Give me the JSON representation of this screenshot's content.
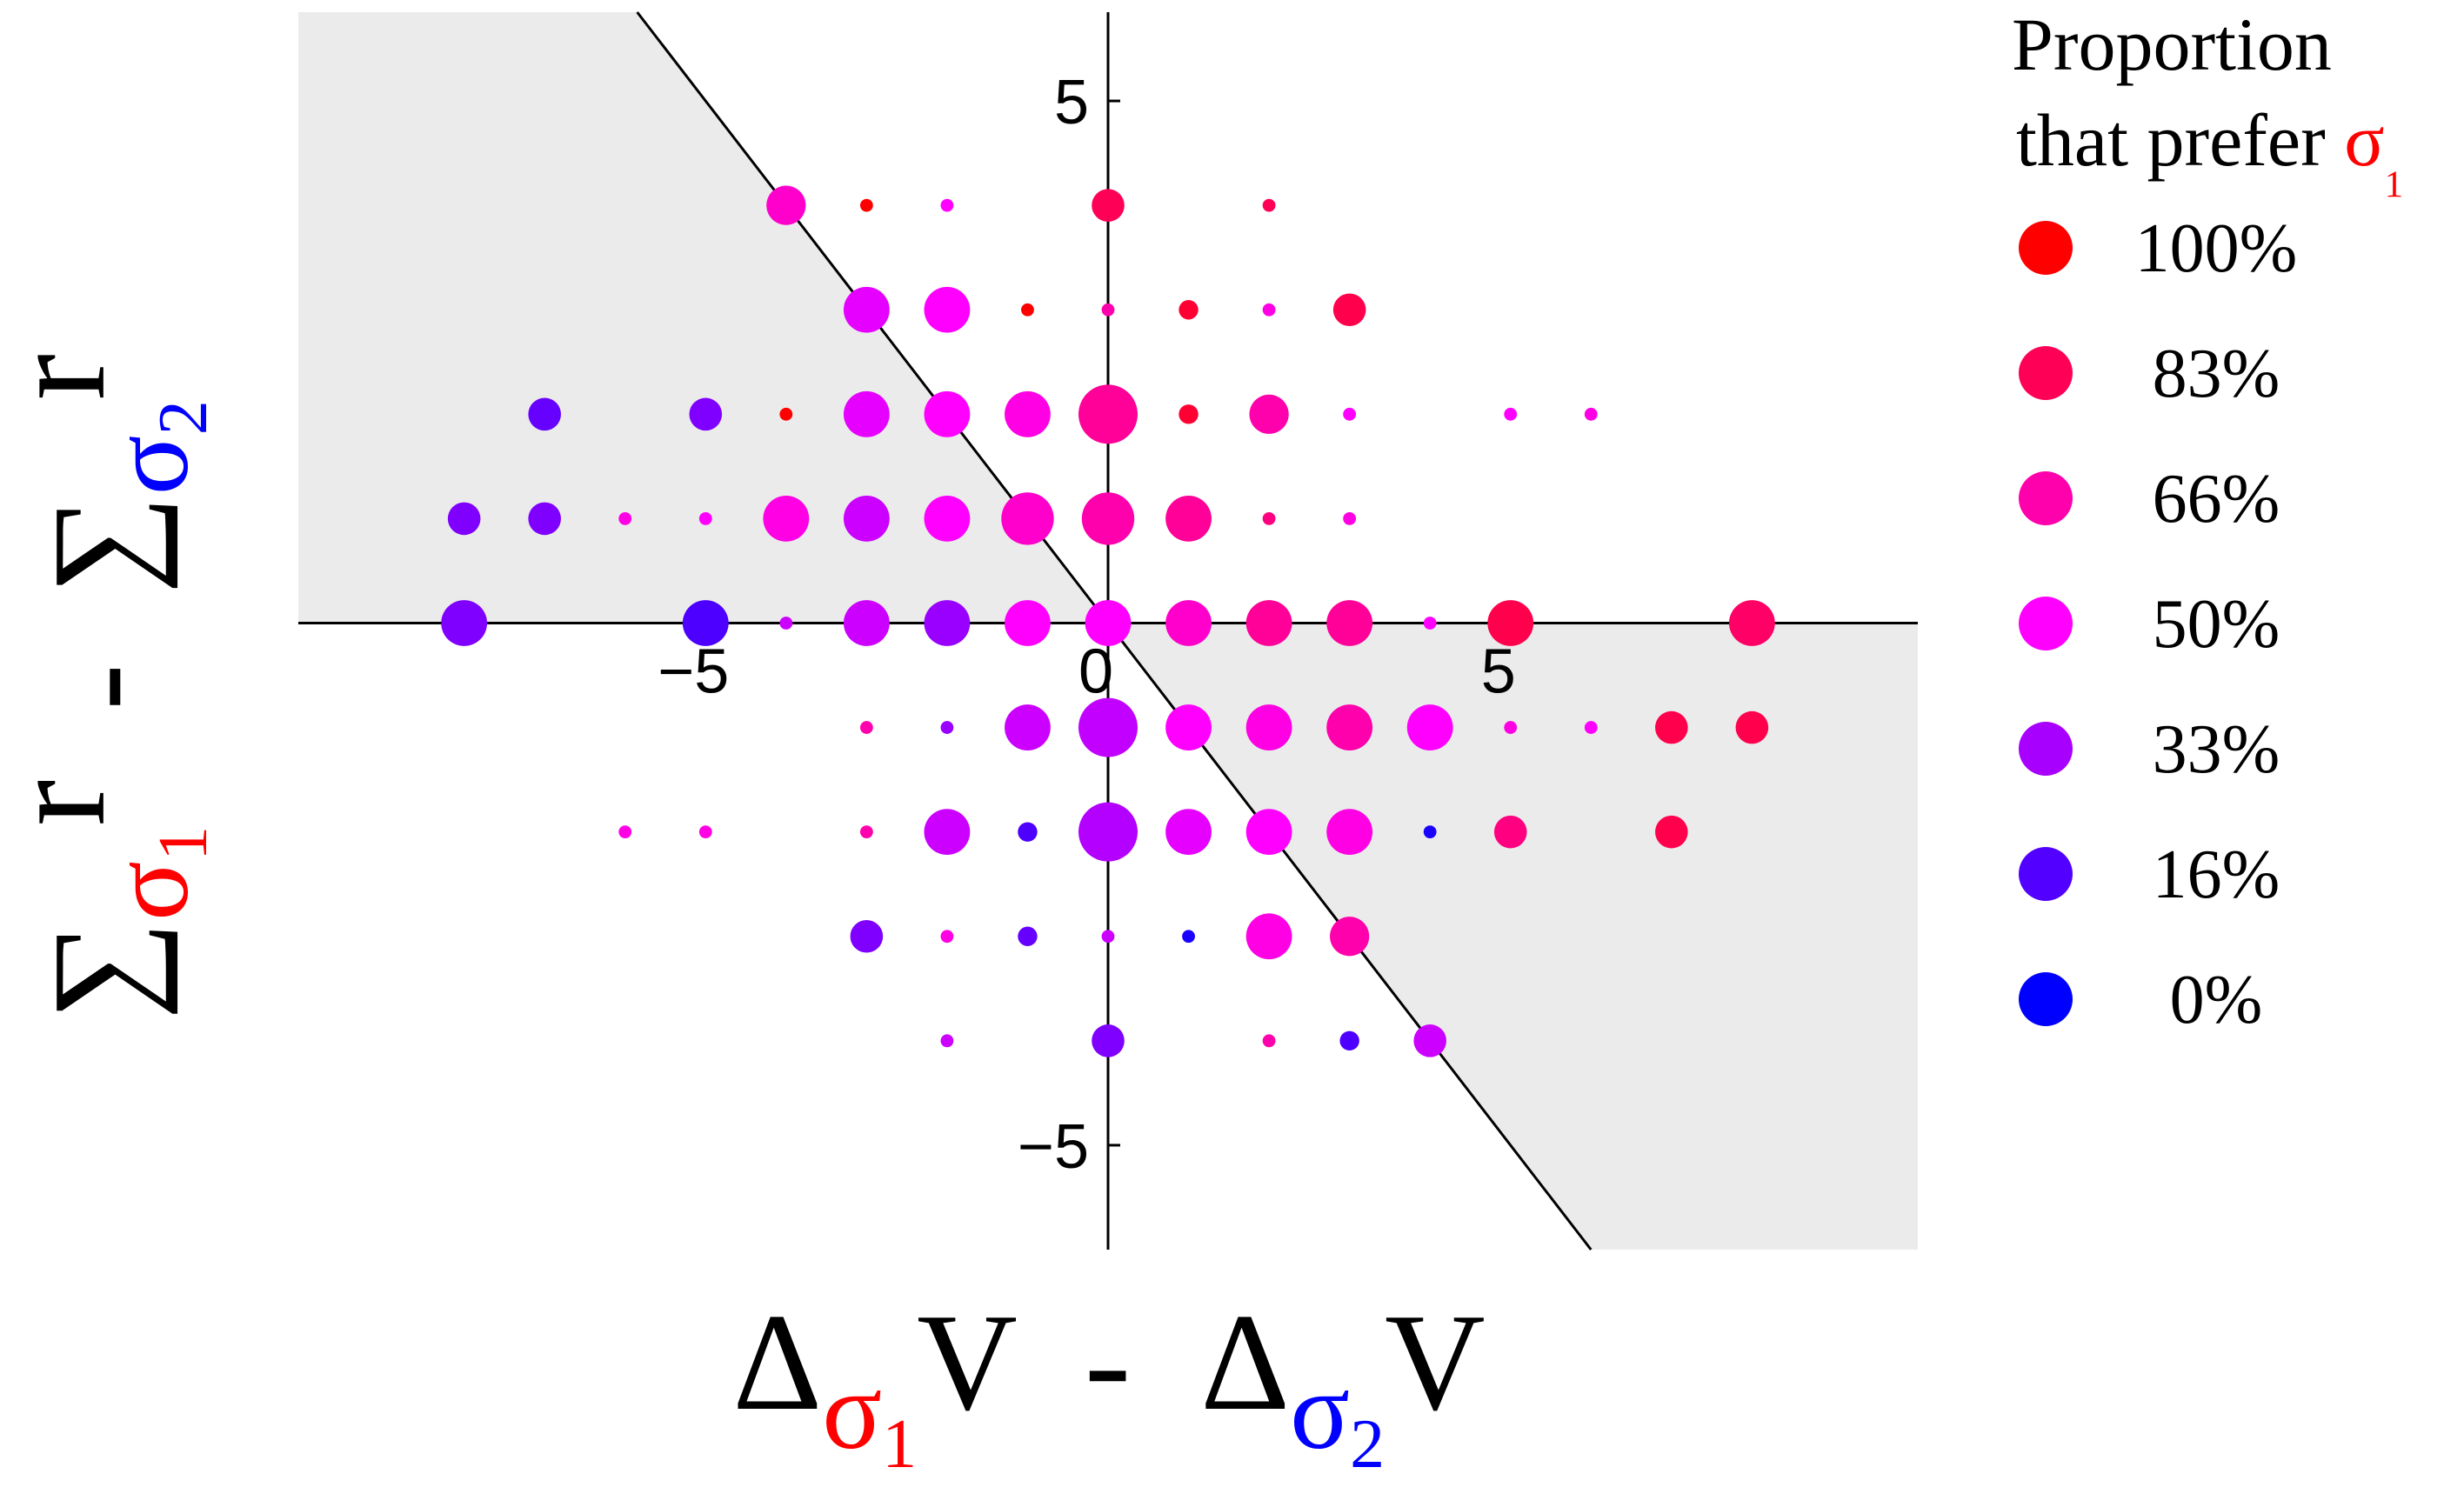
{
  "chart_data": {
    "type": "bubble",
    "x_label": [
      {
        "text": "Δ",
        "role": "base"
      },
      {
        "text": "σ",
        "color": "#ff0000",
        "role": "sub"
      },
      {
        "text": "1",
        "color": "#ff0000",
        "role": "subsub"
      },
      {
        "text": "V  -  Δ",
        "role": "base"
      },
      {
        "text": "σ",
        "color": "#0000ff",
        "role": "sub"
      },
      {
        "text": "2",
        "color": "#0000ff",
        "role": "subsub"
      },
      {
        "text": "V",
        "role": "base"
      }
    ],
    "y_label": [
      {
        "text": "∑",
        "role": "base"
      },
      {
        "text": "σ",
        "color": "#ff0000",
        "role": "sub"
      },
      {
        "text": "1",
        "color": "#ff0000",
        "role": "subsub"
      },
      {
        "text": "r",
        "role": "sup"
      },
      {
        "text": "  -  ∑",
        "role": "base"
      },
      {
        "text": "σ",
        "color": "#0000ff",
        "role": "sub"
      },
      {
        "text": "2",
        "color": "#0000ff",
        "role": "subsub"
      },
      {
        "text": "r",
        "role": "sup"
      }
    ],
    "xlim": [
      -10.06,
      10.06
    ],
    "ylim": [
      -6.0,
      5.85
    ],
    "xticks": [
      {
        "value": -5,
        "label": "−5"
      },
      0,
      5
    ],
    "yticks": [
      {
        "value": -5,
        "label": "−5"
      },
      5
    ],
    "shade_color": "#ebebeb",
    "color_low": "#0000ff",
    "color_mid": "#ff00ff",
    "color_high": "#ff0000",
    "x": [
      -4,
      -3,
      -2,
      0,
      2,
      -3,
      -2,
      -1,
      0,
      1,
      2,
      3,
      -7,
      -5,
      -4,
      -3,
      -2,
      -1,
      0,
      1,
      2,
      3,
      5,
      6,
      -8,
      -7,
      -6,
      -5,
      -4,
      -3,
      -2,
      -1,
      0,
      1,
      2,
      3,
      -8,
      -5,
      -4,
      -3,
      -2,
      -1,
      0,
      1,
      2,
      3,
      4,
      5,
      8,
      -3,
      -2,
      -1,
      0,
      1,
      2,
      3,
      4,
      5,
      6,
      7,
      8,
      -6,
      -5,
      -3,
      -2,
      -1,
      0,
      1,
      2,
      3,
      4,
      5,
      7,
      -3,
      -2,
      -1,
      0,
      1,
      2,
      3,
      -2,
      0,
      2,
      3,
      4
    ],
    "y": [
      4,
      4,
      4,
      4,
      4,
      3,
      3,
      3,
      3,
      3,
      3,
      3,
      2,
      2,
      2,
      2,
      2,
      2,
      2,
      2,
      2,
      2,
      2,
      2,
      1,
      1,
      1,
      1,
      1,
      1,
      1,
      1,
      1,
      1,
      1,
      1,
      0,
      0,
      0,
      0,
      0,
      0,
      0,
      0,
      0,
      0,
      0,
      0,
      0,
      -1,
      -1,
      -1,
      -1,
      -1,
      -1,
      -1,
      -1,
      -1,
      -1,
      -1,
      -1,
      -2,
      -2,
      -2,
      -2,
      -2,
      -2,
      -2,
      -2,
      -2,
      -2,
      -2,
      -2,
      -3,
      -3,
      -3,
      -3,
      -3,
      -3,
      -3,
      -4,
      -4,
      -4,
      -4,
      -4
    ],
    "size": [
      5,
      1,
      1,
      4,
      1,
      6,
      6,
      1,
      1,
      2,
      1,
      4,
      4,
      4,
      1,
      6,
      6,
      6,
      8,
      2,
      5,
      1,
      1,
      1,
      4,
      4,
      1,
      1,
      6,
      6,
      6,
      7,
      7,
      6,
      1,
      1,
      6,
      6,
      1,
      6,
      6,
      6,
      6,
      6,
      6,
      6,
      1,
      6,
      6,
      1,
      1,
      6,
      8,
      6,
      6,
      6,
      6,
      1,
      1,
      4,
      4,
      1,
      1,
      1,
      6,
      2,
      8,
      6,
      6,
      6,
      1,
      4,
      4,
      4,
      1,
      2,
      1,
      1,
      6,
      5,
      1,
      4,
      1,
      2,
      4
    ],
    "proportion": [
      60,
      100,
      50,
      83,
      83,
      45,
      50,
      100,
      66,
      90,
      55,
      85,
      20,
      25,
      100,
      45,
      50,
      55,
      70,
      90,
      66,
      50,
      50,
      55,
      25,
      25,
      55,
      50,
      55,
      40,
      50,
      60,
      66,
      70,
      75,
      55,
      25,
      15,
      40,
      40,
      30,
      50,
      50,
      60,
      70,
      70,
      50,
      85,
      80,
      66,
      30,
      40,
      38,
      50,
      55,
      66,
      50,
      55,
      50,
      85,
      85,
      55,
      55,
      66,
      40,
      15,
      35,
      45,
      50,
      55,
      5,
      75,
      85,
      25,
      55,
      20,
      40,
      5,
      55,
      66,
      40,
      25,
      66,
      15,
      40
    ],
    "legend": {
      "title": "Proportion",
      "subtitle": [
        {
          "text": "that prefer ",
          "role": "base"
        },
        {
          "text": "σ",
          "color": "#ff0000",
          "role": "base"
        },
        {
          "text": "1",
          "color": "#ff0000",
          "role": "subsub"
        }
      ],
      "items": [
        {
          "value": 100,
          "label": "100%"
        },
        {
          "value": 83,
          "label": "83%"
        },
        {
          "value": 66,
          "label": "66%"
        },
        {
          "value": 50,
          "label": "50%"
        },
        {
          "value": 33,
          "label": "33%"
        },
        {
          "value": 16,
          "label": "16%"
        },
        {
          "value": 0,
          "label": "0%"
        }
      ]
    }
  }
}
